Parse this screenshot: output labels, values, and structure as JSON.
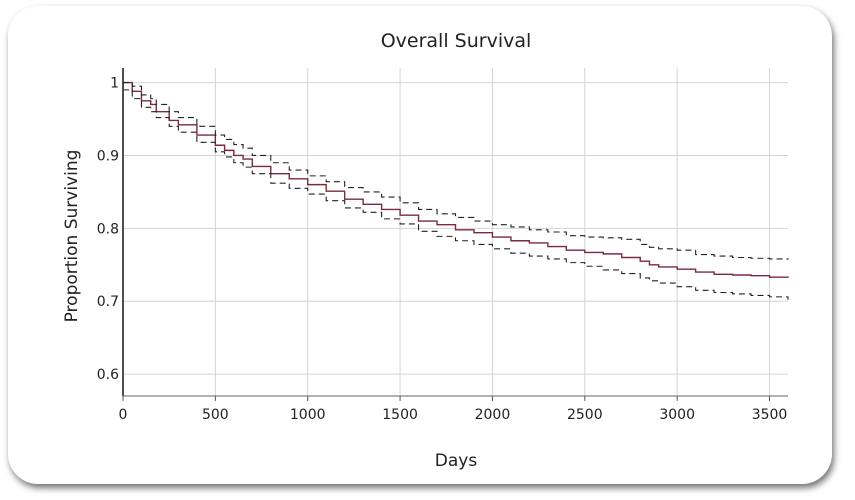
{
  "chart_data": {
    "type": "line",
    "title": "Overall Survival",
    "xlabel": "Days",
    "ylabel": "Proportion Surviving",
    "xlim": [
      0,
      3600
    ],
    "ylim": [
      0.57,
      1.02
    ],
    "x_ticks": [
      0,
      500,
      1000,
      1500,
      2000,
      2500,
      3000,
      3500
    ],
    "y_ticks": [
      0.6,
      0.7,
      0.8,
      0.9,
      1
    ],
    "y_tick_labels": [
      "0.6",
      "0.7",
      "0.8",
      "0.9",
      "1"
    ],
    "grid": true,
    "step": true,
    "series": [
      {
        "role": "estimate",
        "style": "solid",
        "color": "#7a2a3a",
        "x": [
          0,
          50,
          100,
          150,
          180,
          250,
          300,
          400,
          500,
          550,
          600,
          650,
          700,
          800,
          900,
          1000,
          1100,
          1200,
          1300,
          1400,
          1500,
          1600,
          1700,
          1800,
          1900,
          2000,
          2100,
          2200,
          2300,
          2400,
          2500,
          2600,
          2700,
          2800,
          2850,
          2900,
          3000,
          3100,
          3200,
          3300,
          3400,
          3500,
          3600
        ],
        "y": [
          1.0,
          0.988,
          0.975,
          0.97,
          0.96,
          0.948,
          0.942,
          0.928,
          0.914,
          0.907,
          0.9,
          0.895,
          0.885,
          0.875,
          0.868,
          0.86,
          0.851,
          0.84,
          0.833,
          0.826,
          0.818,
          0.81,
          0.805,
          0.798,
          0.794,
          0.788,
          0.783,
          0.78,
          0.775,
          0.77,
          0.767,
          0.765,
          0.76,
          0.755,
          0.75,
          0.747,
          0.744,
          0.74,
          0.737,
          0.736,
          0.735,
          0.733,
          0.732
        ]
      },
      {
        "role": "upper-bound",
        "style": "dashed",
        "color": "#222222",
        "x": [
          0,
          50,
          100,
          150,
          180,
          250,
          300,
          400,
          500,
          550,
          600,
          650,
          700,
          800,
          900,
          1000,
          1100,
          1200,
          1300,
          1400,
          1500,
          1600,
          1700,
          1800,
          1900,
          2000,
          2100,
          2200,
          2300,
          2400,
          2500,
          2600,
          2700,
          2800,
          2850,
          2900,
          3000,
          3100,
          3200,
          3300,
          3400,
          3500,
          3600
        ],
        "y": [
          1.0,
          0.995,
          0.983,
          0.978,
          0.97,
          0.96,
          0.952,
          0.94,
          0.928,
          0.922,
          0.915,
          0.91,
          0.9,
          0.89,
          0.88,
          0.872,
          0.864,
          0.856,
          0.85,
          0.843,
          0.835,
          0.826,
          0.82,
          0.815,
          0.81,
          0.805,
          0.802,
          0.798,
          0.795,
          0.79,
          0.788,
          0.787,
          0.785,
          0.778,
          0.774,
          0.772,
          0.77,
          0.764,
          0.762,
          0.76,
          0.759,
          0.758,
          0.757
        ]
      },
      {
        "role": "lower-bound",
        "style": "dashed",
        "color": "#222222",
        "x": [
          0,
          50,
          100,
          150,
          180,
          250,
          300,
          400,
          500,
          550,
          600,
          650,
          700,
          800,
          900,
          1000,
          1100,
          1200,
          1300,
          1400,
          1500,
          1600,
          1700,
          1800,
          1900,
          2000,
          2100,
          2200,
          2300,
          2400,
          2500,
          2600,
          2700,
          2800,
          2850,
          2900,
          3000,
          3100,
          3200,
          3300,
          3400,
          3500,
          3600
        ],
        "y": [
          0.99,
          0.978,
          0.966,
          0.96,
          0.952,
          0.94,
          0.932,
          0.918,
          0.905,
          0.898,
          0.89,
          0.884,
          0.875,
          0.862,
          0.855,
          0.847,
          0.838,
          0.828,
          0.822,
          0.813,
          0.806,
          0.796,
          0.789,
          0.783,
          0.778,
          0.772,
          0.766,
          0.762,
          0.758,
          0.753,
          0.748,
          0.743,
          0.738,
          0.732,
          0.728,
          0.725,
          0.72,
          0.715,
          0.712,
          0.71,
          0.708,
          0.706,
          0.702
        ]
      }
    ]
  }
}
